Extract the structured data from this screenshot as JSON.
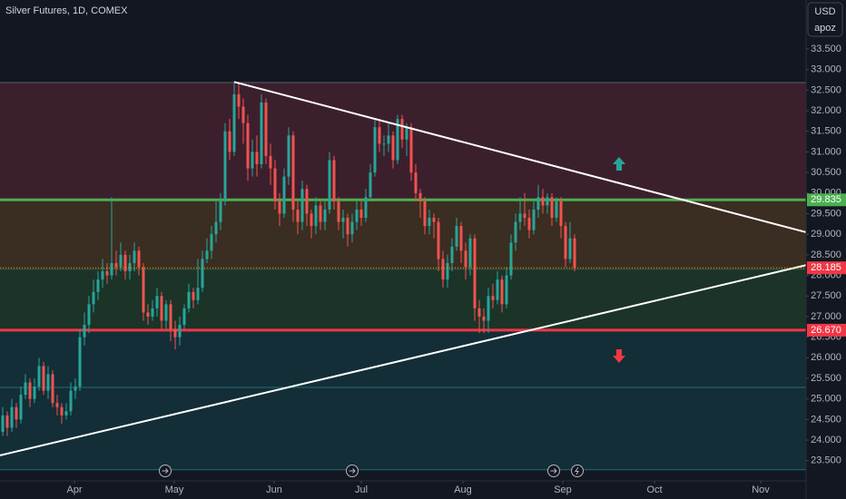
{
  "chart_data": {
    "type": "candlestick",
    "title": "Silver Futures, 1D, COMEX",
    "currency": "USD",
    "scale_mode": "apoz",
    "up_color": "#26a69a",
    "down_color": "#ef5350",
    "open": [
      24.2,
      24.6,
      24.3,
      24.8,
      24.5,
      25.1,
      25.4,
      25.0,
      25.3,
      25.8,
      25.2,
      25.6,
      24.9,
      24.8,
      24.6,
      24.7,
      25.2,
      25.3,
      26.5,
      26.8,
      27.3,
      27.6,
      27.9,
      28.1,
      28.0,
      28.3,
      28.2,
      28.5,
      28.1,
      28.3,
      28.6,
      28.2,
      27.1,
      27.0,
      27.2,
      27.5,
      26.9,
      27.3,
      26.7,
      26.5,
      26.8,
      27.2,
      27.6,
      27.4,
      27.7,
      28.4,
      28.6,
      29.0,
      29.3,
      29.8,
      31.5,
      31.0,
      32.4,
      32.1,
      31.7,
      30.6,
      31.0,
      30.7,
      32.2,
      30.9,
      30.6,
      29.8,
      29.5,
      30.4,
      31.4,
      29.6,
      29.3,
      30.1,
      29.5,
      29.2,
      29.7,
      29.3,
      29.6,
      30.8,
      29.8,
      29.3,
      29.4,
      29.0,
      29.3,
      29.6,
      29.4,
      29.9,
      30.5,
      31.6,
      31.2,
      31.2,
      31.4,
      30.8,
      31.8,
      31.3,
      31.6,
      30.5,
      30.0,
      29.8,
      29.2,
      29.4,
      29.3,
      28.4,
      27.9,
      28.3,
      28.7,
      29.2,
      28.6,
      28.2,
      28.9,
      27.2,
      27.0,
      26.9,
      27.5,
      27.4,
      27.9,
      27.3,
      28.0,
      28.8,
      29.3,
      29.5,
      29.4,
      29.1,
      29.6,
      29.9,
      29.7,
      29.9,
      29.4,
      29.8,
      29.2,
      28.4,
      28.9
    ],
    "high": [
      24.8,
      24.7,
      25.0,
      24.9,
      25.3,
      25.6,
      25.5,
      25.5,
      26.0,
      25.9,
      25.8,
      25.7,
      25.1,
      24.9,
      24.9,
      25.4,
      25.5,
      26.7,
      27.1,
      27.5,
      27.9,
      28.1,
      28.4,
      28.3,
      29.9,
      28.6,
      28.8,
      28.6,
      28.5,
      28.8,
      28.7,
      28.3,
      27.3,
      27.4,
      27.7,
      27.6,
      27.4,
      27.4,
      26.9,
      27.0,
      27.3,
      27.8,
      27.7,
      28.4,
      28.6,
      28.9,
      29.2,
      29.8,
      30.0,
      31.7,
      31.8,
      32.7,
      32.7,
      32.3,
      31.9,
      31.3,
      31.4,
      32.4,
      32.3,
      31.2,
      30.8,
      30.0,
      30.6,
      31.6,
      31.5,
      29.8,
      30.3,
      30.2,
      29.6,
      29.9,
      29.8,
      29.8,
      31.0,
      30.9,
      29.9,
      29.6,
      29.5,
      29.5,
      29.8,
      29.8,
      30.1,
      30.7,
      31.8,
      31.8,
      31.4,
      31.7,
      31.5,
      31.9,
      31.9,
      31.7,
      31.7,
      30.7,
      30.1,
      29.9,
      29.6,
      29.5,
      29.4,
      28.6,
      28.5,
      28.9,
      29.4,
      29.3,
      28.8,
      29.0,
      29.0,
      27.4,
      27.2,
      27.7,
      27.8,
      28.1,
      28.0,
      28.2,
      29.0,
      29.5,
      29.9,
      30.0,
      29.6,
      29.8,
      30.2,
      30.1,
      30.0,
      30.0,
      29.9,
      29.9,
      29.3,
      29.3,
      29.0
    ],
    "low": [
      24.1,
      24.1,
      24.2,
      24.3,
      24.4,
      25.0,
      24.8,
      24.9,
      25.2,
      25.1,
      25.0,
      24.8,
      24.6,
      24.4,
      24.5,
      24.6,
      25.0,
      25.2,
      26.3,
      26.6,
      27.1,
      27.4,
      27.7,
      27.8,
      27.9,
      28.0,
      28.1,
      27.9,
      27.9,
      28.1,
      28.0,
      26.9,
      26.8,
      26.9,
      27.0,
      26.7,
      26.7,
      26.4,
      26.2,
      26.3,
      26.7,
      27.1,
      27.2,
      27.3,
      27.6,
      28.3,
      28.4,
      28.8,
      29.1,
      29.7,
      30.8,
      30.9,
      31.8,
      31.2,
      30.3,
      30.4,
      30.4,
      30.6,
      30.7,
      30.2,
      29.6,
      29.2,
      29.4,
      30.2,
      29.3,
      29.0,
      29.1,
      29.2,
      28.9,
      29.0,
      29.1,
      29.1,
      29.5,
      29.6,
      29.1,
      28.9,
      28.7,
      28.8,
      29.1,
      29.2,
      29.3,
      29.8,
      30.4,
      31.0,
      30.9,
      31.0,
      30.6,
      30.7,
      31.1,
      30.9,
      30.3,
      29.8,
      29.4,
      29.0,
      29.0,
      28.9,
      28.1,
      27.7,
      27.7,
      28.1,
      28.6,
      28.3,
      27.9,
      28.0,
      26.9,
      26.6,
      26.6,
      26.6,
      27.2,
      27.3,
      27.1,
      27.2,
      27.9,
      28.6,
      29.1,
      29.2,
      28.9,
      29.0,
      29.4,
      29.5,
      29.5,
      29.2,
      29.3,
      28.9,
      28.2,
      28.3,
      28.1
    ],
    "close": [
      24.6,
      24.3,
      24.8,
      24.5,
      25.1,
      25.4,
      25.0,
      25.3,
      25.8,
      25.2,
      25.6,
      24.9,
      24.8,
      24.6,
      24.7,
      25.2,
      25.3,
      26.5,
      26.8,
      27.3,
      27.6,
      27.9,
      28.1,
      28.0,
      28.3,
      28.2,
      28.5,
      28.1,
      28.3,
      28.6,
      28.2,
      27.1,
      27.0,
      27.2,
      27.5,
      26.9,
      27.3,
      26.7,
      26.5,
      26.8,
      27.2,
      27.6,
      27.4,
      27.7,
      28.4,
      28.6,
      29.0,
      29.3,
      29.8,
      31.5,
      31.0,
      32.4,
      32.1,
      31.7,
      30.6,
      31.0,
      30.7,
      32.2,
      30.9,
      30.6,
      29.8,
      29.5,
      30.4,
      31.4,
      29.6,
      29.3,
      30.1,
      29.5,
      29.2,
      29.7,
      29.3,
      29.6,
      30.8,
      29.8,
      29.3,
      29.4,
      29.0,
      29.3,
      29.6,
      29.4,
      29.9,
      30.5,
      31.6,
      31.2,
      31.2,
      31.4,
      30.8,
      31.8,
      31.3,
      31.6,
      30.5,
      30.0,
      29.8,
      29.2,
      29.4,
      29.3,
      28.4,
      27.9,
      28.3,
      28.7,
      29.2,
      28.6,
      28.2,
      28.9,
      27.2,
      27.0,
      26.9,
      27.5,
      27.4,
      27.9,
      27.3,
      28.0,
      28.8,
      29.3,
      29.5,
      29.4,
      29.1,
      29.6,
      29.9,
      29.7,
      29.9,
      29.4,
      29.8,
      29.2,
      28.4,
      28.9,
      28.185
    ],
    "last_price_color": "#f23645",
    "xlim": [
      -0.6,
      177
    ],
    "xticks": [
      {
        "value": 15.8,
        "label": "Apr"
      },
      {
        "value": 37.8,
        "label": "May"
      },
      {
        "value": 59.8,
        "label": "Jun"
      },
      {
        "value": 79,
        "label": "Jul"
      },
      {
        "value": 101.4,
        "label": "Aug"
      },
      {
        "value": 123.4,
        "label": "Sep"
      },
      {
        "value": 143.6,
        "label": "Oct"
      },
      {
        "value": 167,
        "label": "Nov"
      }
    ],
    "ylim": [
      23.01,
      34.69
    ],
    "yticks": [
      {
        "value": 23.5,
        "label": "23.500"
      },
      {
        "value": 24,
        "label": "24.000"
      },
      {
        "value": 24.5,
        "label": "24.500"
      },
      {
        "value": 25,
        "label": "25.000"
      },
      {
        "value": 25.5,
        "label": "25.500"
      },
      {
        "value": 26,
        "label": "26.000"
      },
      {
        "value": 26.5,
        "label": "26.500"
      },
      {
        "value": 27,
        "label": "27.000"
      },
      {
        "value": 27.5,
        "label": "27.500"
      },
      {
        "value": 28,
        "label": "28.000"
      },
      {
        "value": 28.5,
        "label": "28.500"
      },
      {
        "value": 29,
        "label": "29.000"
      },
      {
        "value": 29.5,
        "label": "29.500"
      },
      {
        "value": 30,
        "label": "30.000"
      },
      {
        "value": 30.5,
        "label": "30.500"
      },
      {
        "value": 31,
        "label": "31.000"
      },
      {
        "value": 31.5,
        "label": "31.500"
      },
      {
        "value": 32,
        "label": "32.000"
      },
      {
        "value": 32.5,
        "label": "32.500"
      },
      {
        "value": 33,
        "label": "33.000"
      },
      {
        "value": 33.5,
        "label": "33.500"
      }
    ],
    "grid": false,
    "zones": [
      {
        "from": 32.685,
        "to": 29.835,
        "color": "#3c1f2c",
        "border": "#5d5f68"
      },
      {
        "from": 29.835,
        "to": 28.15,
        "color": "#3a2d21",
        "border": "#6b5a3a"
      },
      {
        "from": 28.15,
        "to": 26.67,
        "color": "#1c3328",
        "border": "#2e5a40"
      },
      {
        "from": 26.67,
        "to": 25.28,
        "color": "#132e36",
        "border": "#1f6f78"
      },
      {
        "from": 25.28,
        "to": 23.28,
        "color": "#132e36",
        "border": "#1f6f78"
      }
    ],
    "levels": [
      {
        "value": 29.835,
        "color": "#4caf50"
      },
      {
        "value": 26.67,
        "label": "26.670",
        "color": "#f23645"
      }
    ],
    "trendlines": [
      {
        "x": [
          51,
          177
        ],
        "y": [
          32.7,
          29.05
        ],
        "color": "#ffffff"
      },
      {
        "x": [
          -0.6,
          177
        ],
        "y": [
          23.63,
          28.25
        ],
        "color": "#ffffff"
      }
    ]
  }
}
